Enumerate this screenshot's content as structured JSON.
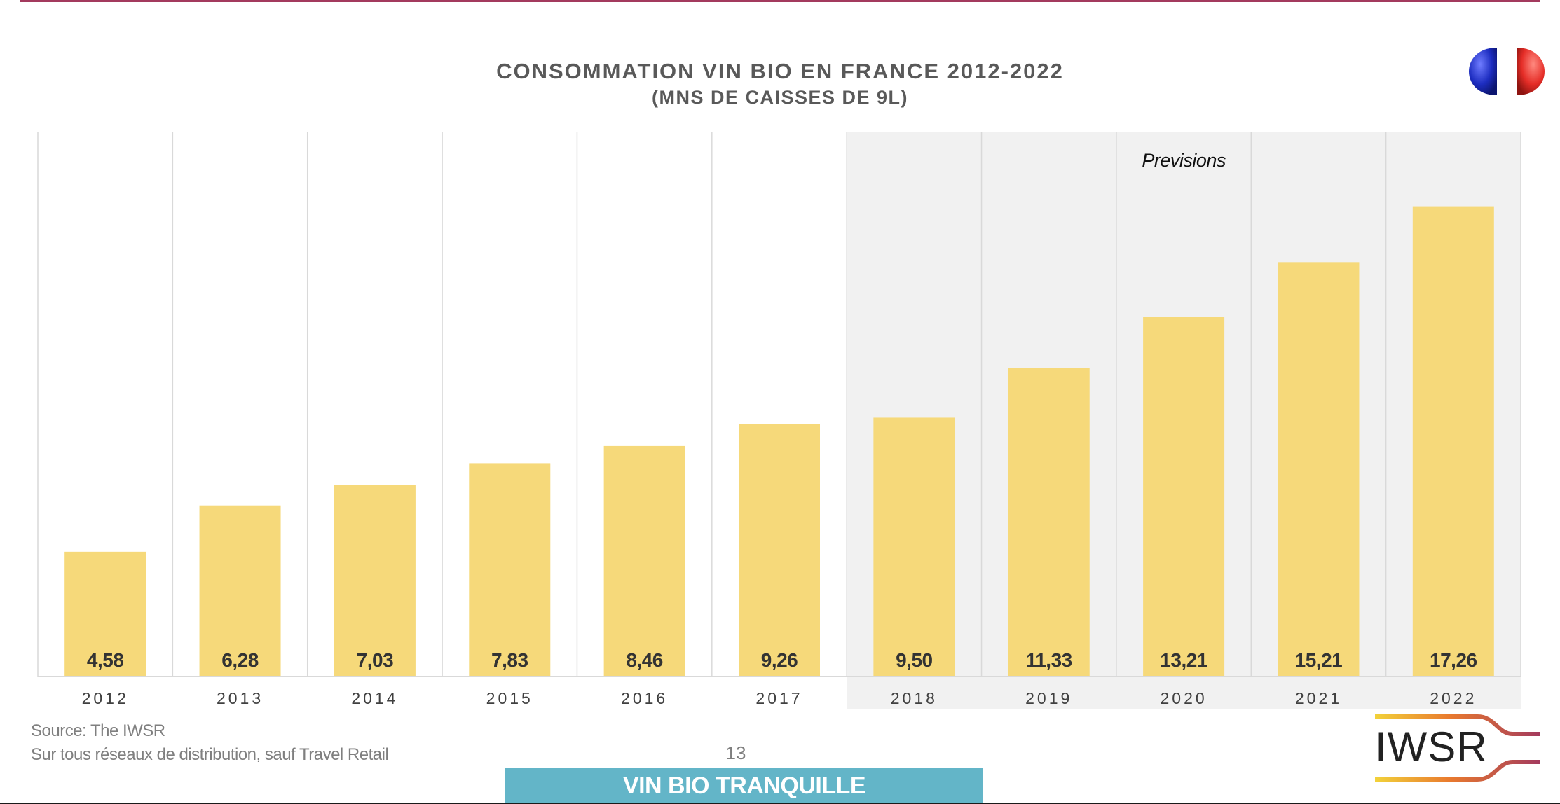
{
  "colors": {
    "bar": "#f6d97a",
    "forecast_band": "#f1f1f1",
    "grid": "#d9d9d9",
    "label_dark": "#333333",
    "axis_text": "#404040",
    "banner": "#63b5c8",
    "accent_rule": "#a33a5e",
    "flag_blue": "#1d2dc0",
    "flag_red": "#e52d27"
  },
  "header": {
    "title": "CONSOMMATION VIN BIO EN FRANCE 2012-2022",
    "subtitle": "(MNS DE CAISSES DE 9L)"
  },
  "icons": {
    "flag": "france-flag-icon",
    "logo": "iwsr-logo"
  },
  "chart_data": {
    "type": "bar",
    "title": "CONSOMMATION VIN BIO EN FRANCE 2012-2022",
    "subtitle": "(MNS DE CAISSES DE 9L)",
    "categories": [
      "2012",
      "2013",
      "2014",
      "2015",
      "2016",
      "2017",
      "2018",
      "2019",
      "2020",
      "2021",
      "2022"
    ],
    "values": [
      4.58,
      6.28,
      7.03,
      7.83,
      8.46,
      9.26,
      9.5,
      11.33,
      13.21,
      15.21,
      17.26
    ],
    "data_labels": [
      "4,58",
      "6,28",
      "7,03",
      "7,83",
      "8,46",
      "9,26",
      "9,50",
      "11,33",
      "13,21",
      "15,21",
      "17,26"
    ],
    "ylim": [
      0,
      20
    ],
    "grid": "vertical",
    "forecast_start_category": "2018",
    "annotation": "Previsions"
  },
  "footer": {
    "source": "Source: The IWSR",
    "note": "Sur tous réseaux de distribution, sauf Travel Retail",
    "page_number": "13",
    "section_banner": "VIN BIO TRANQUILLE",
    "logo_text": "IWSR"
  }
}
